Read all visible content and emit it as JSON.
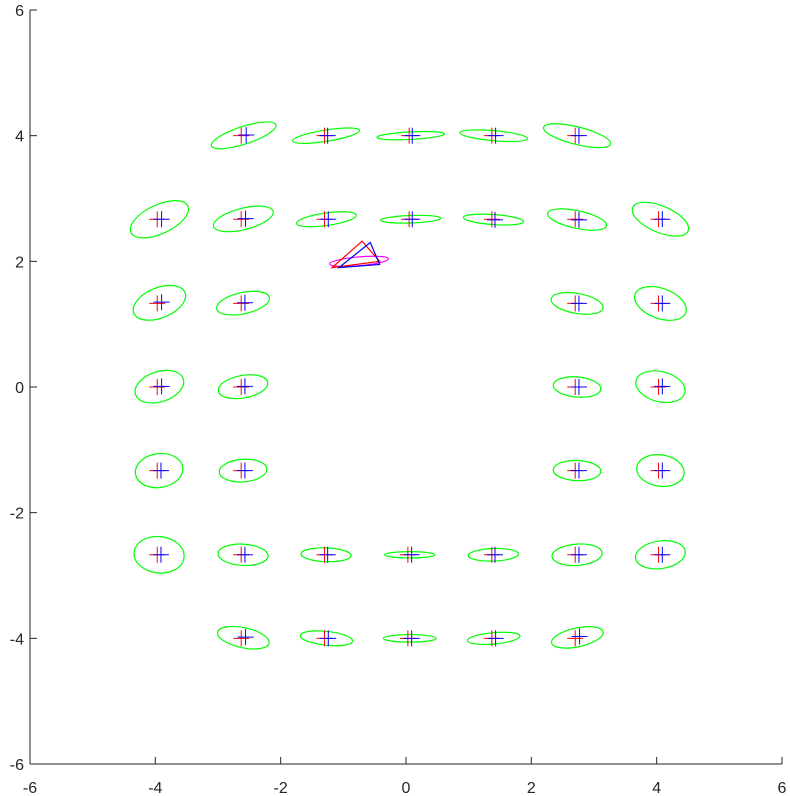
{
  "chart_data": {
    "type": "scatter",
    "title": "",
    "xlabel": "",
    "ylabel": "",
    "xlim": [
      -6,
      6
    ],
    "ylim": [
      -6,
      6
    ],
    "xticks": [
      -6,
      -4,
      -2,
      0,
      2,
      4,
      6
    ],
    "yticks": [
      -6,
      -4,
      -2,
      0,
      2,
      4,
      6
    ],
    "xtick_labels": [
      "-6",
      "-4",
      "-2",
      "0",
      "2",
      "4",
      "6"
    ],
    "ytick_labels": [
      "-6",
      "-4",
      "-2",
      "0",
      "2",
      "4",
      "6"
    ],
    "grid": false,
    "legend": "none",
    "colors": {
      "red_marker": "#ff0000",
      "blue_marker": "#0000ff",
      "ellipse": "#00ff00",
      "pose_ellipse": "#ff00ff",
      "axis": "#262626"
    },
    "points": [
      {
        "red": [
          -2.63,
          4.0
        ],
        "blue": [
          -2.55,
          4.01
        ],
        "ellipse": {
          "rx": 0.54,
          "ry": 0.14,
          "angle": 18
        }
      },
      {
        "red": [
          -1.3,
          4.0
        ],
        "blue": [
          -1.25,
          4.0
        ],
        "ellipse": {
          "rx": 0.54,
          "ry": 0.09,
          "angle": 9
        }
      },
      {
        "red": [
          0.05,
          4.0
        ],
        "blue": [
          0.1,
          4.0
        ],
        "ellipse": {
          "rx": 0.54,
          "ry": 0.06,
          "angle": 3
        }
      },
      {
        "red": [
          1.37,
          4.0
        ],
        "blue": [
          1.43,
          4.0
        ],
        "ellipse": {
          "rx": 0.54,
          "ry": 0.08,
          "angle": -5
        }
      },
      {
        "red": [
          2.7,
          4.0
        ],
        "blue": [
          2.76,
          4.0
        ],
        "ellipse": {
          "rx": 0.55,
          "ry": 0.14,
          "angle": -14
        }
      },
      {
        "red": [
          -3.97,
          2.67
        ],
        "blue": [
          -3.9,
          2.67
        ],
        "ellipse": {
          "rx": 0.5,
          "ry": 0.23,
          "angle": 25
        }
      },
      {
        "red": [
          -2.63,
          2.67
        ],
        "blue": [
          -2.56,
          2.68
        ],
        "ellipse": {
          "rx": 0.49,
          "ry": 0.17,
          "angle": 14
        }
      },
      {
        "red": [
          -1.3,
          2.67
        ],
        "blue": [
          -1.24,
          2.67
        ],
        "ellipse": {
          "rx": 0.48,
          "ry": 0.1,
          "angle": 8
        }
      },
      {
        "red": [
          0.05,
          2.67
        ],
        "blue": [
          0.1,
          2.67
        ],
        "ellipse": {
          "rx": 0.48,
          "ry": 0.06,
          "angle": 2
        }
      },
      {
        "red": [
          1.37,
          2.67
        ],
        "blue": [
          1.42,
          2.66
        ],
        "ellipse": {
          "rx": 0.48,
          "ry": 0.08,
          "angle": -4
        }
      },
      {
        "red": [
          2.7,
          2.67
        ],
        "blue": [
          2.76,
          2.66
        ],
        "ellipse": {
          "rx": 0.48,
          "ry": 0.14,
          "angle": -12
        }
      },
      {
        "red": [
          4.03,
          2.67
        ],
        "blue": [
          4.09,
          2.67
        ],
        "ellipse": {
          "rx": 0.48,
          "ry": 0.21,
          "angle": -23
        }
      },
      {
        "red": [
          -3.97,
          1.33
        ],
        "blue": [
          -3.9,
          1.35
        ],
        "ellipse": {
          "rx": 0.44,
          "ry": 0.24,
          "angle": 22
        }
      },
      {
        "red": [
          -2.63,
          1.33
        ],
        "blue": [
          -2.57,
          1.34
        ],
        "ellipse": {
          "rx": 0.43,
          "ry": 0.17,
          "angle": 12
        }
      },
      {
        "red": [
          2.7,
          1.33
        ],
        "blue": [
          2.76,
          1.33
        ],
        "ellipse": {
          "rx": 0.42,
          "ry": 0.16,
          "angle": -10
        }
      },
      {
        "red": [
          4.03,
          1.33
        ],
        "blue": [
          4.09,
          1.33
        ],
        "ellipse": {
          "rx": 0.43,
          "ry": 0.24,
          "angle": -20
        }
      },
      {
        "red": [
          -3.97,
          0.0
        ],
        "blue": [
          -3.9,
          0.01
        ],
        "ellipse": {
          "rx": 0.4,
          "ry": 0.24,
          "angle": 18
        }
      },
      {
        "red": [
          -2.63,
          0.0
        ],
        "blue": [
          -2.57,
          0.01
        ],
        "ellipse": {
          "rx": 0.4,
          "ry": 0.18,
          "angle": 10
        }
      },
      {
        "red": [
          2.7,
          0.0
        ],
        "blue": [
          2.76,
          0.0
        ],
        "ellipse": {
          "rx": 0.38,
          "ry": 0.16,
          "angle": -5
        }
      },
      {
        "red": [
          4.03,
          0.0
        ],
        "blue": [
          4.09,
          0.01
        ],
        "ellipse": {
          "rx": 0.4,
          "ry": 0.24,
          "angle": -14
        }
      },
      {
        "red": [
          -3.97,
          -1.33
        ],
        "blue": [
          -3.91,
          -1.33
        ],
        "ellipse": {
          "rx": 0.38,
          "ry": 0.27,
          "angle": 8
        }
      },
      {
        "red": [
          -2.63,
          -1.33
        ],
        "blue": [
          -2.57,
          -1.33
        ],
        "ellipse": {
          "rx": 0.38,
          "ry": 0.18,
          "angle": 4
        }
      },
      {
        "red": [
          2.7,
          -1.33
        ],
        "blue": [
          2.76,
          -1.33
        ],
        "ellipse": {
          "rx": 0.38,
          "ry": 0.16,
          "angle": -2
        }
      },
      {
        "red": [
          4.03,
          -1.33
        ],
        "blue": [
          4.09,
          -1.33
        ],
        "ellipse": {
          "rx": 0.38,
          "ry": 0.25,
          "angle": -8
        }
      },
      {
        "red": [
          -3.97,
          -2.67
        ],
        "blue": [
          -3.91,
          -2.67
        ],
        "ellipse": {
          "rx": 0.4,
          "ry": 0.29,
          "angle": -6
        }
      },
      {
        "red": [
          -2.63,
          -2.67
        ],
        "blue": [
          -2.57,
          -2.67
        ],
        "ellipse": {
          "rx": 0.4,
          "ry": 0.17,
          "angle": -3
        }
      },
      {
        "red": [
          -1.3,
          -2.67
        ],
        "blue": [
          -1.25,
          -2.67
        ],
        "ellipse": {
          "rx": 0.4,
          "ry": 0.11,
          "angle": -2
        }
      },
      {
        "red": [
          0.03,
          -2.67
        ],
        "blue": [
          0.09,
          -2.67
        ],
        "ellipse": {
          "rx": 0.4,
          "ry": 0.05,
          "angle": 0
        }
      },
      {
        "red": [
          1.37,
          -2.67
        ],
        "blue": [
          1.42,
          -2.67
        ],
        "ellipse": {
          "rx": 0.4,
          "ry": 0.1,
          "angle": 2
        }
      },
      {
        "red": [
          2.7,
          -2.67
        ],
        "blue": [
          2.76,
          -2.67
        ],
        "ellipse": {
          "rx": 0.4,
          "ry": 0.17,
          "angle": 4
        }
      },
      {
        "red": [
          4.03,
          -2.67
        ],
        "blue": [
          4.09,
          -2.67
        ],
        "ellipse": {
          "rx": 0.4,
          "ry": 0.22,
          "angle": 8
        }
      },
      {
        "red": [
          -2.63,
          -4.0
        ],
        "blue": [
          -2.56,
          -3.98
        ],
        "ellipse": {
          "rx": 0.42,
          "ry": 0.16,
          "angle": -12
        }
      },
      {
        "red": [
          -1.3,
          -4.0
        ],
        "blue": [
          -1.24,
          -4.0
        ],
        "ellipse": {
          "rx": 0.42,
          "ry": 0.11,
          "angle": -6
        }
      },
      {
        "red": [
          0.03,
          -4.0
        ],
        "blue": [
          0.09,
          -4.0
        ],
        "ellipse": {
          "rx": 0.42,
          "ry": 0.06,
          "angle": 0
        }
      },
      {
        "red": [
          1.37,
          -4.0
        ],
        "blue": [
          1.43,
          -4.0
        ],
        "ellipse": {
          "rx": 0.42,
          "ry": 0.09,
          "angle": 5
        }
      },
      {
        "red": [
          2.7,
          -4.0
        ],
        "blue": [
          2.77,
          -3.97
        ],
        "ellipse": {
          "rx": 0.42,
          "ry": 0.15,
          "angle": 12
        }
      }
    ],
    "pose": {
      "red_triangle": [
        [
          -1.18,
          1.9
        ],
        [
          -0.7,
          2.32
        ],
        [
          -0.42,
          2.0
        ]
      ],
      "blue_triangle": [
        [
          -1.07,
          1.9
        ],
        [
          -0.57,
          2.3
        ],
        [
          -0.42,
          1.95
        ]
      ],
      "ellipse": {
        "cx": -0.75,
        "cy": 2.0,
        "rx": 0.47,
        "ry": 0.07,
        "angle": 5
      }
    }
  }
}
